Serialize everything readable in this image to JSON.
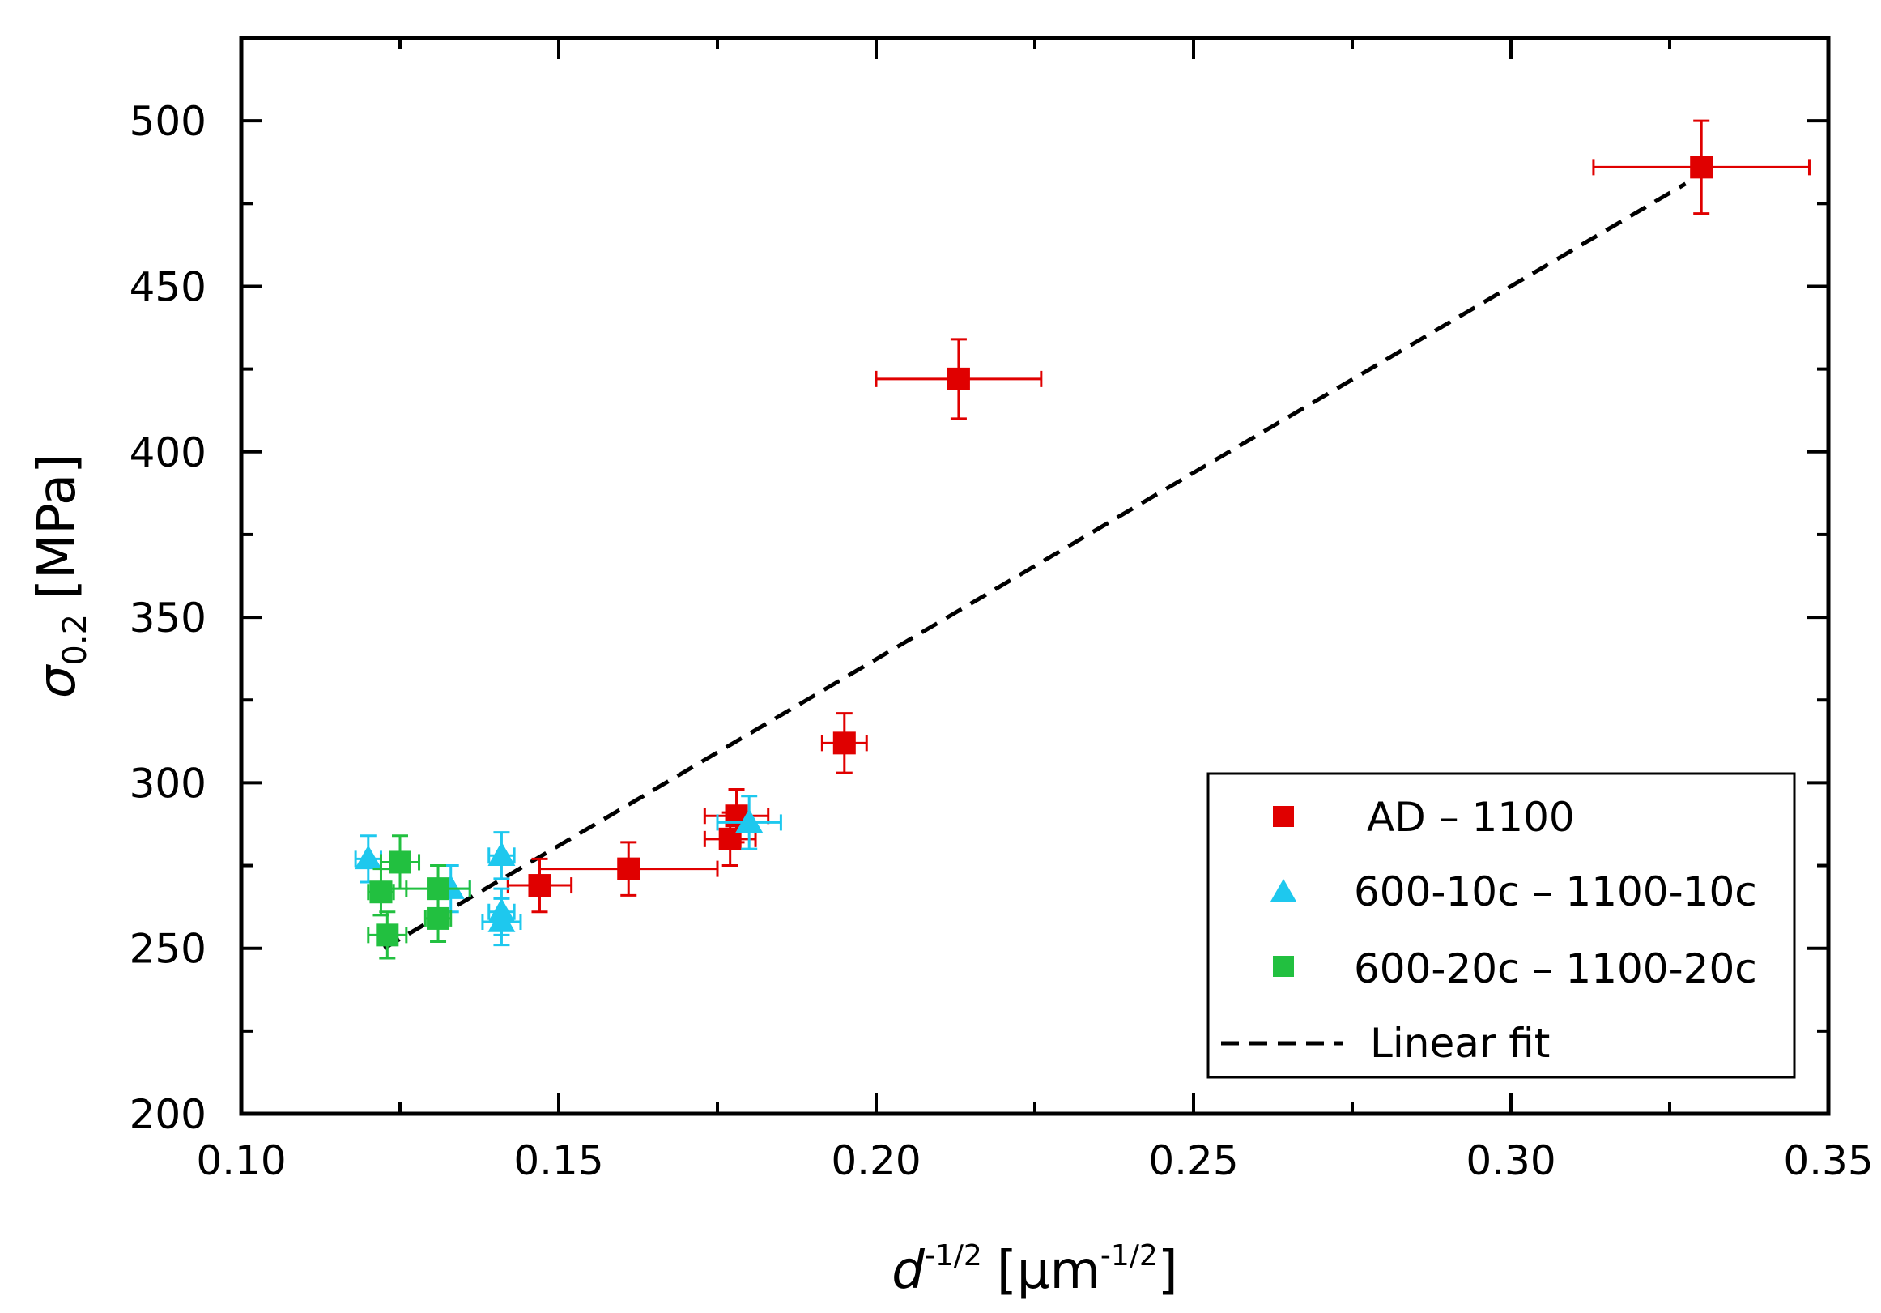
{
  "chart_data": {
    "type": "scatter",
    "title": "",
    "xlabel": {
      "main": "d",
      "sup": "-1/2",
      "unit_open": "[µm",
      "unit_sup": "-1/2",
      "unit_close": "]"
    },
    "ylabel": {
      "main": "σ",
      "sub": "0.2",
      "unit": "[MPa]"
    },
    "xlim": [
      0.1,
      0.35
    ],
    "ylim": [
      200,
      525
    ],
    "xticks": [
      "0.10",
      "0.15",
      "0.20",
      "0.25",
      "0.30",
      "0.35"
    ],
    "xtick_values": [
      0.1,
      0.15,
      0.2,
      0.25,
      0.3,
      0.35
    ],
    "yticks": [
      "200",
      "250",
      "300",
      "350",
      "400",
      "450",
      "500"
    ],
    "ytick_values": [
      200,
      250,
      300,
      350,
      400,
      450,
      500
    ],
    "legend_position": "bottom-right",
    "series": [
      {
        "name": "AD – 1100",
        "marker": "square",
        "color": "#e00000",
        "points": [
          {
            "x": 0.147,
            "y": 269,
            "xerr": 0.005,
            "yerr": 8
          },
          {
            "x": 0.161,
            "y": 274,
            "xerr": 0.014,
            "yerr": 8
          },
          {
            "x": 0.177,
            "y": 283,
            "xerr": 0.004,
            "yerr": 8
          },
          {
            "x": 0.178,
            "y": 290,
            "xerr": 0.005,
            "yerr": 8
          },
          {
            "x": 0.195,
            "y": 312,
            "xerr": 0.0035,
            "yerr": 9
          },
          {
            "x": 0.213,
            "y": 422,
            "xerr": 0.013,
            "yerr": 12
          },
          {
            "x": 0.33,
            "y": 486,
            "xerr": 0.017,
            "yerr": 14
          }
        ]
      },
      {
        "name": "600-10c – 1100-10c",
        "marker": "triangle",
        "color": "#1ec8ee",
        "points": [
          {
            "x": 0.12,
            "y": 277,
            "xerr": 0.002,
            "yerr": 7
          },
          {
            "x": 0.133,
            "y": 268,
            "xerr": 0.003,
            "yerr": 7
          },
          {
            "x": 0.141,
            "y": 278,
            "xerr": 0.002,
            "yerr": 7
          },
          {
            "x": 0.141,
            "y": 258,
            "xerr": 0.003,
            "yerr": 7
          },
          {
            "x": 0.141,
            "y": 261,
            "xerr": 0.002,
            "yerr": 7
          },
          {
            "x": 0.18,
            "y": 288,
            "xerr": 0.005,
            "yerr": 8
          }
        ]
      },
      {
        "name": "600-20c – 1100-20c",
        "marker": "square",
        "color": "#22c040",
        "points": [
          {
            "x": 0.122,
            "y": 267,
            "xerr": 0.002,
            "yerr": 7
          },
          {
            "x": 0.123,
            "y": 254,
            "xerr": 0.003,
            "yerr": 7
          },
          {
            "x": 0.125,
            "y": 276,
            "xerr": 0.003,
            "yerr": 8
          },
          {
            "x": 0.131,
            "y": 268,
            "xerr": 0.005,
            "yerr": 7
          },
          {
            "x": 0.131,
            "y": 259,
            "xerr": 0.002,
            "yerr": 7
          }
        ]
      }
    ],
    "fit": {
      "name": "Linear fit",
      "color": "#000000",
      "style": "dashed",
      "x": [
        0.1225,
        0.3275
      ],
      "y": [
        250,
        481
      ]
    }
  }
}
